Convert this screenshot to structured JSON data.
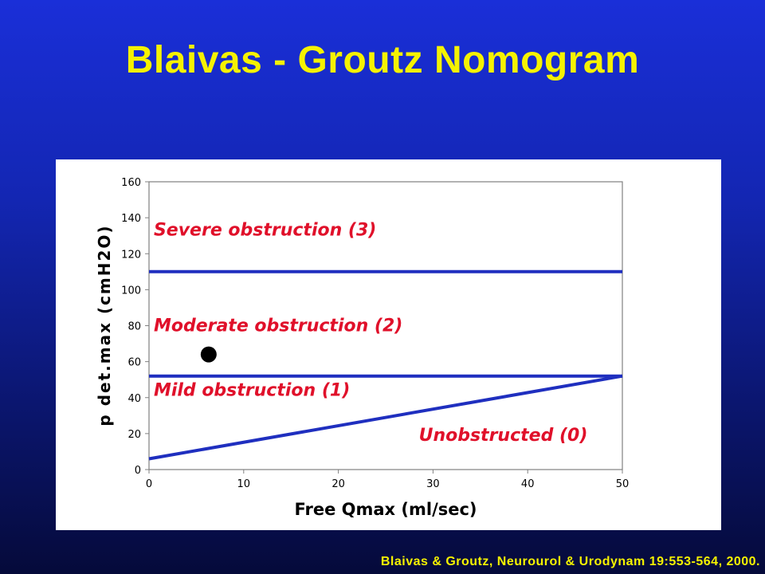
{
  "slide": {
    "title": "Blaivas - Groutz Nomogram",
    "citation": "Blaivas & Groutz, Neurourol & Urodynam 19:553-564, 2000."
  },
  "colors": {
    "title_text": "#f5f200",
    "line": "#1f2fbf",
    "region_label": "#e0102a",
    "point": "#000000"
  },
  "chart_data": {
    "type": "line",
    "xlabel": "Free Qmax (ml/sec)",
    "ylabel": "p det.max (cmH2O)",
    "xlim": [
      0,
      50
    ],
    "ylim": [
      0,
      160
    ],
    "x_ticks": [
      0,
      10,
      20,
      30,
      40,
      50
    ],
    "y_ticks": [
      0,
      20,
      40,
      60,
      80,
      100,
      120,
      140,
      160
    ],
    "grid": false,
    "lines": [
      {
        "x": [
          0,
          50
        ],
        "y": [
          110,
          110
        ]
      },
      {
        "x": [
          0,
          50
        ],
        "y": [
          52,
          52
        ]
      },
      {
        "x": [
          0,
          50
        ],
        "y": [
          6,
          52
        ]
      }
    ],
    "points": [
      {
        "x": 6.3,
        "y": 64
      }
    ],
    "region_labels": [
      {
        "text": "Severe obstruction (3)",
        "x": 0.5,
        "y": 130
      },
      {
        "text": "Moderate obstruction (2)",
        "x": 0.5,
        "y": 77
      },
      {
        "text": "Mild obstruction (1)",
        "x": 0.5,
        "y": 41
      },
      {
        "text": "Unobstructed (0)",
        "x": 28.5,
        "y": 16
      }
    ]
  }
}
